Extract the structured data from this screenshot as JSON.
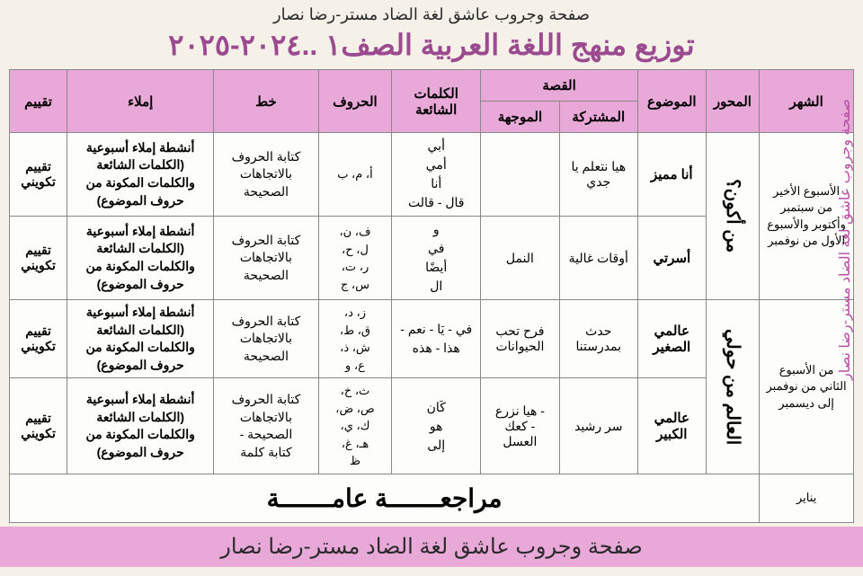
{
  "header": {
    "top_text": "صفحة وجروب عاشق لغة الضاد مستر-رضا نصار",
    "main_title": "توزيع منهج اللغة العربية الصف١ ..٢٠٢٤-٢٠٢٥",
    "side_text": "صفحة وجروب عاشق لغة الضاد مستر-رضا نصار",
    "footer_banner": "صفحة وجروب عاشق لغة الضاد مستر-رضا نصار"
  },
  "columns": {
    "month": "الشهر",
    "axis": "المحور",
    "topic": "الموضوع",
    "story": "القصة",
    "story_shared": "المشتركة",
    "story_guided": "الموجهة",
    "common_words": "الكلمات الشائعة",
    "letters": "الحروف",
    "handwriting": "خط",
    "dictation": "إملاء",
    "evaluation": "تقييم"
  },
  "rows": [
    {
      "month": "الأسبوع الأخير من سبتمبر وأكتوبر والأسبوع الأول من نوفمبر",
      "month_rowspan": 2,
      "axis": "من أكون؟",
      "axis_rowspan": 2,
      "topic": "أنا مميز",
      "story_shared": "هيا نتعلم يا جدي",
      "story_guided": "",
      "common_words": "أبي\nأمي\nأنا\nقال - قالت",
      "letters": "أ، م، ب",
      "handwriting": "كتابة الحروف بالاتجاهات الصحيحة",
      "dictation": "أنشطة إملاء أسبوعية (الكلمات الشائعة والكلمات المكونة من حروف الموضوع)",
      "evaluation": "تقييم تكويني"
    },
    {
      "topic": "أسرتي",
      "story_shared": "أوقات غالية",
      "story_guided": "النمل",
      "common_words": "و\nفي\nأيضًا\nال",
      "letters": "ف، ن،\nل، ح،\nر، ت،\nس، ج",
      "handwriting": "كتابة الحروف بالاتجاهات الصحيحة",
      "dictation": "أنشطة إملاء أسبوعية (الكلمات الشائعة والكلمات المكونة من حروف الموضوع)",
      "evaluation": "تقييم تكويني"
    },
    {
      "month": "من الأسبوع الثاني من نوفمبر إلى ديسمبر",
      "month_rowspan": 2,
      "axis": "العالم من حولي",
      "axis_rowspan": 2,
      "topic": "عالمي الصغير",
      "story_shared": "حدث بمدرستنا",
      "story_guided": "فرح تحب الحيوانات",
      "common_words": "في - يَا - نعم -\nهذا - هذه",
      "letters": "ز، د،\nق، ط،\nش، ذ،\nع، و",
      "handwriting": "كتابة الحروف بالاتجاهات الصحيحة",
      "dictation": "أنشطة إملاء أسبوعية (الكلمات الشائعة والكلمات المكونة من حروف الموضوع)",
      "evaluation": "تقييم تكويني"
    },
    {
      "topic": "عالمي الكبير",
      "story_shared": "سر رشيد",
      "story_guided": "- هيا نزرع\n- كعك العسل",
      "common_words": "كَان\nهو\nإلى",
      "letters": "ث، خ،\nص، ض،\nك، ي،\nهـ، غ،\nظ",
      "handwriting": "كتابة الحروف بالاتجاهات الصحيحة -\nكتابة كلمة",
      "dictation": "أنشطة إملاء أسبوعية (الكلمات الشائعة والكلمات المكونة من حروف الموضوع)",
      "evaluation": "تقييم تكويني"
    }
  ],
  "review": {
    "month": "يناير",
    "text": "مراجعـــــــة عامـــــــة"
  }
}
